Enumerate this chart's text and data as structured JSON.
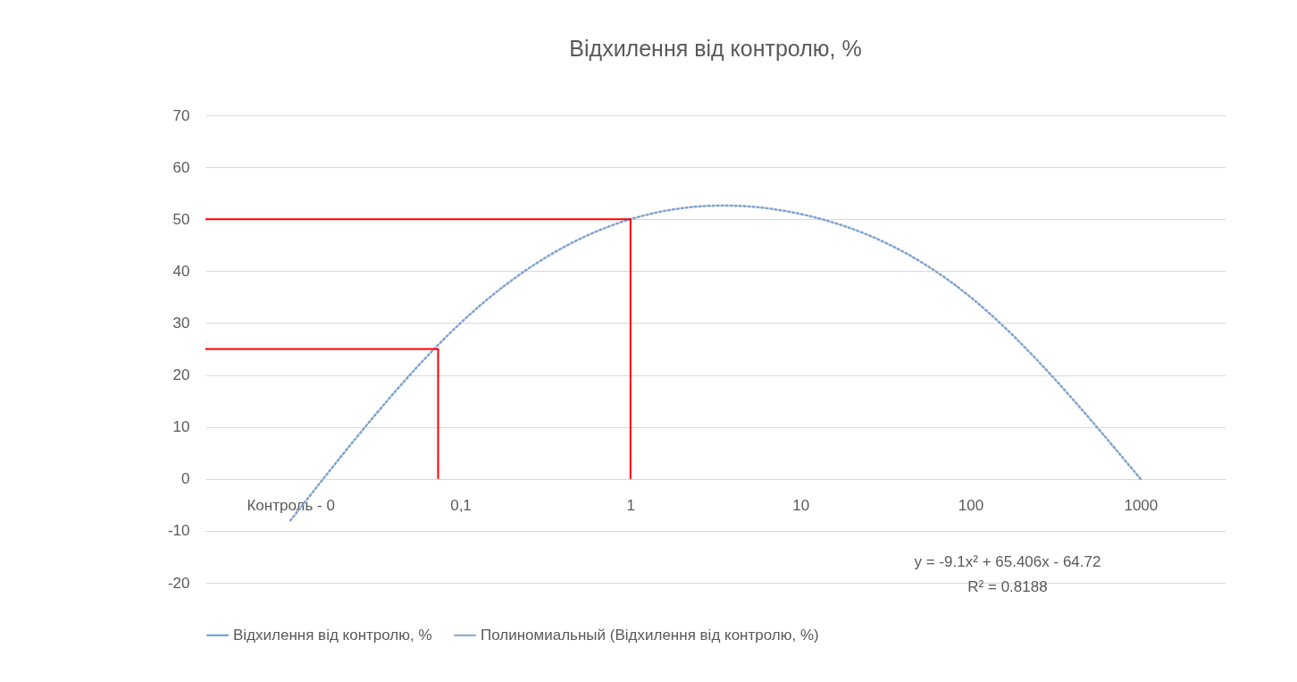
{
  "chart_data": {
    "type": "line",
    "title": "Відхилення від контролю, %",
    "categories": [
      "Контроль - 0",
      "0,1",
      "1",
      "10",
      "100",
      "1000"
    ],
    "ylim": [
      -20,
      70
    ],
    "yticks": [
      -20,
      -10,
      0,
      10,
      20,
      30,
      40,
      50,
      60,
      70
    ],
    "grid": "y",
    "legend": "bottom",
    "series": [
      {
        "name": "Відхилення від контролю, %",
        "color": "#5b9bd5",
        "values": [
          null,
          null,
          null,
          null,
          null,
          null
        ]
      },
      {
        "name": "Полиномиальный (Відхилення від контролю, %)",
        "line_style": "dotted",
        "color": "#7fa3d0",
        "values": [
          -8,
          30,
          50,
          51,
          35,
          0
        ]
      }
    ],
    "ref_lines": [
      {
        "axis": "y",
        "value": 25,
        "color": "#ff0000"
      },
      {
        "axis": "y",
        "value": 50,
        "color": "#ff0000"
      }
    ],
    "annotations": [
      "y = -9.1x² + 65.406x - 64.72",
      "R² = 0.8188"
    ]
  }
}
